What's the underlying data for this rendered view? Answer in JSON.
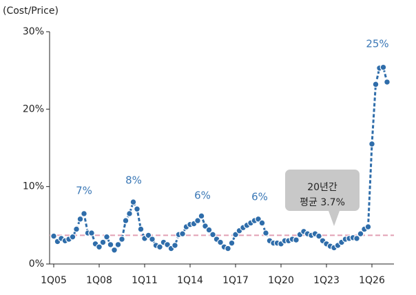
{
  "chart_data": {
    "type": "line",
    "y_axis_label": "(Cost/Price)",
    "categories": [
      "1Q05",
      null,
      null,
      null,
      null,
      null,
      null,
      null,
      null,
      null,
      null,
      null,
      "1Q08",
      null,
      null,
      null,
      null,
      null,
      null,
      null,
      null,
      null,
      null,
      null,
      "1Q11",
      null,
      null,
      null,
      null,
      null,
      null,
      null,
      null,
      null,
      null,
      null,
      "1Q14",
      null,
      null,
      null,
      null,
      null,
      null,
      null,
      null,
      null,
      null,
      null,
      "1Q17",
      null,
      null,
      null,
      null,
      null,
      null,
      null,
      null,
      null,
      null,
      null,
      "1Q20",
      null,
      null,
      null,
      null,
      null,
      null,
      null,
      null,
      null,
      null,
      null,
      "1Q23",
      null,
      null,
      null,
      null,
      null,
      null,
      null,
      null,
      null,
      null,
      null,
      "1Q26",
      null,
      null,
      null,
      null
    ],
    "series": [
      {
        "color": "#2f6daa",
        "values": [
          3.6,
          2.9,
          3.3,
          3.0,
          3.2,
          3.5,
          4.5,
          5.8,
          6.5,
          4.0,
          4.0,
          2.6,
          2.2,
          2.8,
          3.5,
          2.5,
          1.8,
          2.5,
          3.2,
          5.6,
          6.5,
          8.0,
          7.1,
          4.5,
          3.3,
          3.7,
          3.2,
          2.4,
          2.2,
          2.8,
          2.5,
          2.0,
          2.4,
          3.8,
          3.9,
          4.8,
          5.1,
          5.2,
          5.6,
          6.2,
          4.9,
          4.4,
          3.8,
          3.2,
          2.8,
          2.2,
          2.0,
          2.7,
          3.8,
          4.3,
          4.7,
          5.0,
          5.3,
          5.6,
          5.8,
          5.3,
          4.0,
          3.0,
          2.7,
          2.7,
          2.6,
          3.0,
          3.0,
          3.2,
          3.1,
          3.8,
          4.2,
          3.9,
          3.7,
          3.9,
          3.6,
          3.0,
          2.6,
          2.3,
          2.1,
          2.4,
          2.8,
          3.2,
          3.3,
          3.4,
          3.3,
          3.9,
          4.5,
          4.8,
          15.5,
          23.2,
          25.3,
          25.4,
          23.5
        ]
      }
    ],
    "average": {
      "value": 3.7,
      "color": "#e29fb3",
      "label_lines": [
        "20년간",
        "평균 3.7%"
      ]
    },
    "annotations": [
      "7%",
      "8%",
      "6%",
      "6%",
      "25%"
    ],
    "ylim": [
      0,
      30
    ],
    "yticks": [
      {
        "value": 0,
        "label": "0%"
      },
      {
        "value": 10,
        "label": "10%"
      },
      {
        "value": 20,
        "label": "20%"
      },
      {
        "value": 30,
        "label": "30%"
      }
    ]
  }
}
